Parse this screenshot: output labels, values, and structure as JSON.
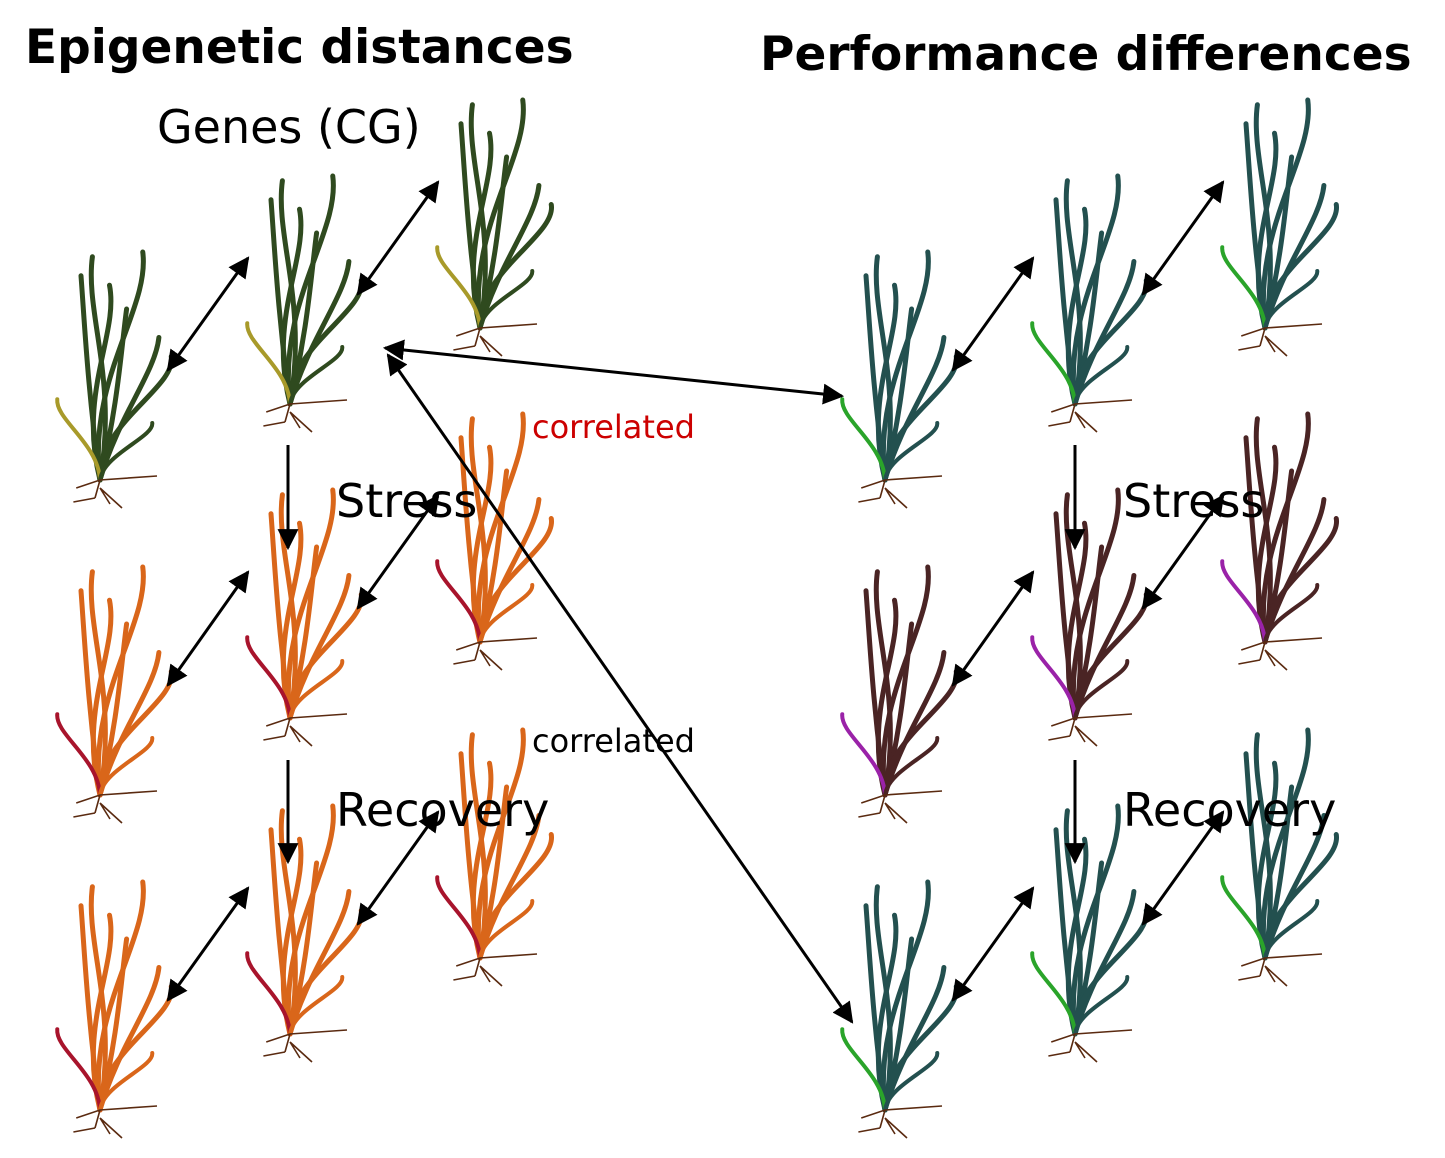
{
  "titles": {
    "left": "Epigenetic distances",
    "right": "Performance differences"
  },
  "subtitle": "Genes (CG)",
  "steps": {
    "left_stress": "Stress",
    "left_recovery": "Recovery",
    "right_stress": "Stress",
    "right_recovery": "Recovery"
  },
  "correlations": {
    "top": "correlated",
    "bottom": "correlated"
  },
  "colors": {
    "correlated_top": "#cc0000",
    "left_control_main": "#2f4a1f",
    "left_control_alt": "#a89a2a",
    "left_stress_main": "#d9661a",
    "left_stress_alt": "#a8142c",
    "right_control_main": "#23504f",
    "right_control_alt": "#2aa42a",
    "right_stress_main": "#4a2424",
    "right_stress_alt": "#9a22a8",
    "root": "#5a2a10"
  },
  "icons": {
    "plant": "grass-plant-icon",
    "arrow": "double-headed-arrow-icon"
  }
}
